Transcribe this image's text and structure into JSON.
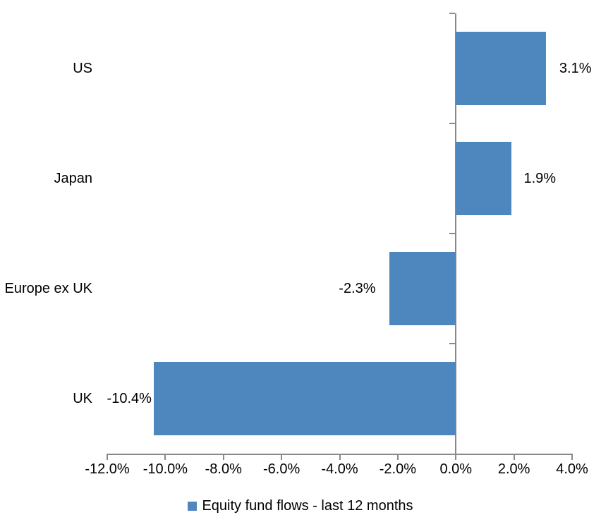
{
  "chart_data": {
    "type": "bar",
    "orientation": "horizontal",
    "title": "",
    "categories": [
      "US",
      "Japan",
      "Europe ex UK",
      "UK"
    ],
    "values": [
      3.1,
      1.9,
      -2.3,
      -10.4
    ],
    "value_labels": [
      "3.1%",
      "1.9%",
      "-2.3%",
      "-10.4%"
    ],
    "xlim": [
      -12,
      4
    ],
    "xtick_step": 2,
    "xtick_labels": [
      "-12.0%",
      "-10.0%",
      "-8.0%",
      "-6.0%",
      "-4.0%",
      "-2.0%",
      "0.0%",
      "2.0%",
      "4.0%"
    ],
    "legend": "Equity fund flows - last 12 months",
    "legend_position": "bottom",
    "grid": false,
    "bar_color": "#4E86BE",
    "axis_color": "#898989",
    "text_color": "#000000",
    "background_color": "#FFFFFF"
  }
}
